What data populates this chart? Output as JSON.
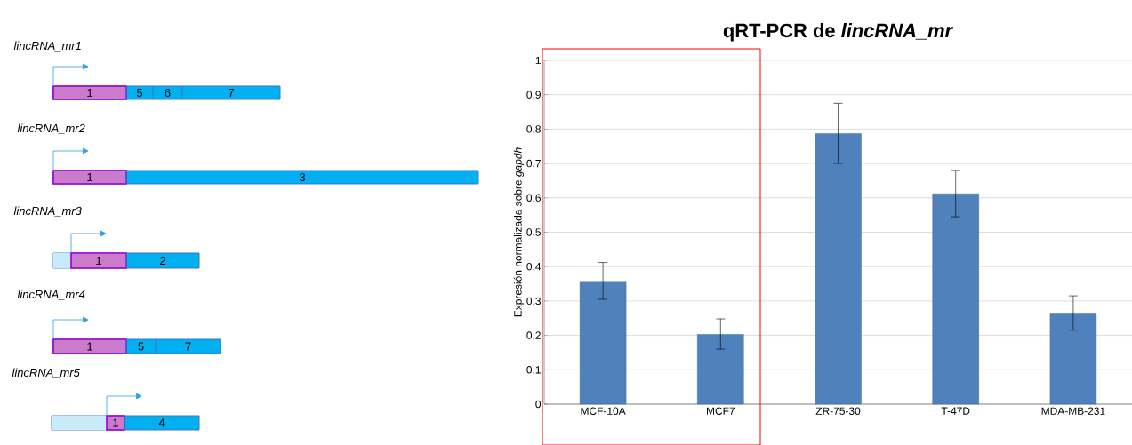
{
  "chart_data": [
    {
      "type": "other",
      "annotations": [
        "lincRNA_mr1",
        "1",
        "5",
        "6",
        "7",
        "lincRNA_mr2",
        "1",
        "3",
        "lincRNA_mr3",
        "1",
        "2",
        "lincRNA_mr4",
        "1",
        "5",
        "7",
        "lincRNA_mr5",
        "1",
        "4"
      ]
    },
    {
      "type": "bar",
      "title": "qRT-PCR de *lincRNA_mr*",
      "ylabel": "Expresión normalizada sobre *gapdh*",
      "categories": [
        "MCF-10A",
        "MCF7",
        "ZR-75-30",
        "T-47D",
        "MDA-MB-231"
      ],
      "values": [
        0.357,
        0.203,
        0.787,
        0.612,
        0.265
      ],
      "errors": [
        [
          0.305,
          0.412
        ],
        [
          0.16,
          0.248
        ],
        [
          0.7,
          0.875
        ],
        [
          0.545,
          0.68
        ],
        [
          0.215,
          0.315
        ]
      ],
      "color": "#4f81bd",
      "ylim": [
        0,
        1
      ],
      "yticks": [
        0,
        0.1,
        0.2,
        0.3,
        0.4,
        0.5,
        0.6,
        0.7,
        0.8,
        0.9,
        1
      ],
      "grid": "y"
    }
  ]
}
